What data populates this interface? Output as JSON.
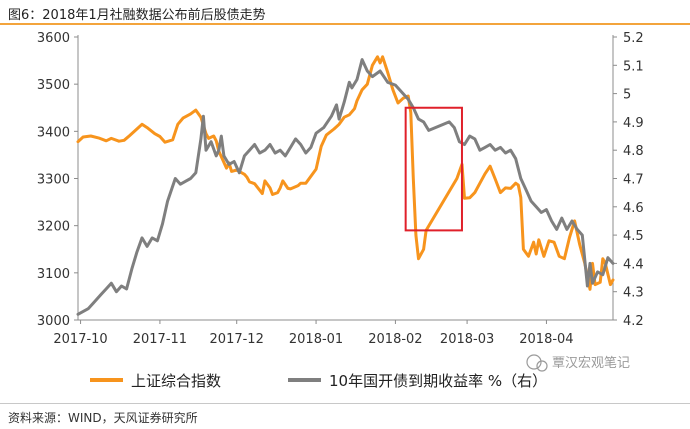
{
  "figure": {
    "title": "图6：2018年1月社融数据公布前后股债走势",
    "source": "资料来源：WIND，天风证券研究所",
    "watermark": "覃汉宏观笔记"
  },
  "chart_data": {
    "type": "line",
    "x_ticks": [
      "2017-10",
      "2017-11",
      "2017-12",
      "2018-01",
      "2018-02",
      "2018-03",
      "2018-04"
    ],
    "x_range": [
      "2017-09-30",
      "2018-04-27"
    ],
    "y_left": {
      "ticks": [
        3000,
        3100,
        3200,
        3300,
        3400,
        3500,
        3600
      ],
      "lim": [
        3000,
        3600
      ]
    },
    "y_right": {
      "ticks": [
        "4.2",
        "4.3",
        "4.4",
        "4.5",
        "4.6",
        "4.7",
        "4.8",
        "4.9",
        "5",
        "5.1",
        "5.2"
      ],
      "lim": [
        4.2,
        5.2
      ]
    },
    "grid": false,
    "legend_position": "bottom",
    "series": [
      {
        "name": "上证综合指数",
        "axis": "left",
        "color": "#f7941d",
        "points": [
          [
            "2017-09-30",
            3378
          ],
          [
            "2017-10-02",
            3388
          ],
          [
            "2017-10-05",
            3390
          ],
          [
            "2017-10-08",
            3386
          ],
          [
            "2017-10-11",
            3380
          ],
          [
            "2017-10-13",
            3385
          ],
          [
            "2017-10-16",
            3379
          ],
          [
            "2017-10-18",
            3381
          ],
          [
            "2017-10-20",
            3390
          ],
          [
            "2017-10-23",
            3405
          ],
          [
            "2017-10-25",
            3415
          ],
          [
            "2017-10-27",
            3408
          ],
          [
            "2017-10-30",
            3395
          ],
          [
            "2017-11-01",
            3389
          ],
          [
            "2017-11-03",
            3377
          ],
          [
            "2017-11-06",
            3382
          ],
          [
            "2017-11-08",
            3415
          ],
          [
            "2017-11-10",
            3428
          ],
          [
            "2017-11-13",
            3437
          ],
          [
            "2017-11-15",
            3445
          ],
          [
            "2017-11-17",
            3430
          ],
          [
            "2017-11-19",
            3395
          ],
          [
            "2017-11-20",
            3385
          ],
          [
            "2017-11-22",
            3390
          ],
          [
            "2017-11-23",
            3380
          ],
          [
            "2017-11-24",
            3358
          ],
          [
            "2017-11-27",
            3322
          ],
          [
            "2017-11-28",
            3333
          ],
          [
            "2017-11-29",
            3315
          ],
          [
            "2017-12-01",
            3318
          ],
          [
            "2017-12-04",
            3309
          ],
          [
            "2017-12-05",
            3303
          ],
          [
            "2017-12-06",
            3293
          ],
          [
            "2017-12-08",
            3289
          ],
          [
            "2017-12-11",
            3268
          ],
          [
            "2017-12-12",
            3295
          ],
          [
            "2017-12-14",
            3280
          ],
          [
            "2017-12-15",
            3266
          ],
          [
            "2017-12-17",
            3270
          ],
          [
            "2017-12-18",
            3280
          ],
          [
            "2017-12-19",
            3295
          ],
          [
            "2017-12-21",
            3279
          ],
          [
            "2017-12-22",
            3278
          ],
          [
            "2017-12-25",
            3285
          ],
          [
            "2017-12-26",
            3290
          ],
          [
            "2017-12-28",
            3290
          ],
          [
            "2018-01-01",
            3320
          ],
          [
            "2018-01-03",
            3368
          ],
          [
            "2018-01-05",
            3392
          ],
          [
            "2018-01-08",
            3405
          ],
          [
            "2018-01-10",
            3415
          ],
          [
            "2018-01-12",
            3430
          ],
          [
            "2018-01-14",
            3435
          ],
          [
            "2018-01-16",
            3448
          ],
          [
            "2018-01-17",
            3465
          ],
          [
            "2018-01-19",
            3488
          ],
          [
            "2018-01-21",
            3500
          ],
          [
            "2018-01-23",
            3540
          ],
          [
            "2018-01-25",
            3558
          ],
          [
            "2018-01-26",
            3545
          ],
          [
            "2018-01-27",
            3558
          ],
          [
            "2018-01-29",
            3525
          ],
          [
            "2018-01-31",
            3488
          ],
          [
            "2018-02-02",
            3460
          ],
          [
            "2018-02-04",
            3470
          ],
          [
            "2018-02-06",
            3475
          ],
          [
            "2018-02-07",
            3440
          ],
          [
            "2018-02-08",
            3300
          ],
          [
            "2018-02-09",
            3180
          ],
          [
            "2018-02-10",
            3130
          ],
          [
            "2018-02-12",
            3150
          ],
          [
            "2018-02-13",
            3190
          ],
          [
            "2018-02-25",
            3300
          ],
          [
            "2018-02-27",
            3330
          ],
          [
            "2018-02-28",
            3258
          ],
          [
            "2018-03-02",
            3259
          ],
          [
            "2018-03-04",
            3270
          ],
          [
            "2018-03-06",
            3290
          ],
          [
            "2018-03-08",
            3310
          ],
          [
            "2018-03-10",
            3326
          ],
          [
            "2018-03-12",
            3299
          ],
          [
            "2018-03-14",
            3270
          ],
          [
            "2018-03-16",
            3280
          ],
          [
            "2018-03-18",
            3279
          ],
          [
            "2018-03-20",
            3290
          ],
          [
            "2018-03-21",
            3286
          ],
          [
            "2018-03-22",
            3260
          ],
          [
            "2018-03-23",
            3150
          ],
          [
            "2018-03-25",
            3135
          ],
          [
            "2018-03-27",
            3165
          ],
          [
            "2018-03-28",
            3140
          ],
          [
            "2018-03-29",
            3170
          ],
          [
            "2018-03-31",
            3135
          ],
          [
            "2018-04-02",
            3168
          ],
          [
            "2018-04-04",
            3165
          ],
          [
            "2018-04-06",
            3135
          ],
          [
            "2018-04-08",
            3130
          ],
          [
            "2018-04-10",
            3175
          ],
          [
            "2018-04-12",
            3210
          ],
          [
            "2018-04-14",
            3160
          ],
          [
            "2018-04-16",
            3120
          ],
          [
            "2018-04-18",
            3065
          ],
          [
            "2018-04-19",
            3120
          ],
          [
            "2018-04-20",
            3075
          ],
          [
            "2018-04-22",
            3080
          ],
          [
            "2018-04-23",
            3130
          ],
          [
            "2018-04-24",
            3120
          ],
          [
            "2018-04-26",
            3075
          ],
          [
            "2018-04-27",
            3085
          ]
        ]
      },
      {
        "name": "10年国开债到期收益率  %（右）",
        "axis": "right",
        "color": "#7f7f7f",
        "points": [
          [
            "2017-09-30",
            4.22
          ],
          [
            "2017-10-04",
            4.24
          ],
          [
            "2017-10-06",
            4.26
          ],
          [
            "2017-10-09",
            4.29
          ],
          [
            "2017-10-11",
            4.31
          ],
          [
            "2017-10-13",
            4.33
          ],
          [
            "2017-10-15",
            4.3
          ],
          [
            "2017-10-17",
            4.32
          ],
          [
            "2017-10-19",
            4.31
          ],
          [
            "2017-10-21",
            4.38
          ],
          [
            "2017-10-23",
            4.44
          ],
          [
            "2017-10-25",
            4.49
          ],
          [
            "2017-10-27",
            4.46
          ],
          [
            "2017-10-29",
            4.49
          ],
          [
            "2017-10-31",
            4.48
          ],
          [
            "2017-11-02",
            4.54
          ],
          [
            "2017-11-04",
            4.62
          ],
          [
            "2017-11-07",
            4.7
          ],
          [
            "2017-11-09",
            4.68
          ],
          [
            "2017-11-11",
            4.69
          ],
          [
            "2017-11-13",
            4.7
          ],
          [
            "2017-11-15",
            4.72
          ],
          [
            "2017-11-17",
            4.84
          ],
          [
            "2017-11-18",
            4.92
          ],
          [
            "2017-11-19",
            4.8
          ],
          [
            "2017-11-21",
            4.83
          ],
          [
            "2017-11-23",
            4.78
          ],
          [
            "2017-11-24",
            4.8
          ],
          [
            "2017-11-25",
            4.85
          ],
          [
            "2017-11-26",
            4.78
          ],
          [
            "2017-11-28",
            4.75
          ],
          [
            "2017-11-30",
            4.76
          ],
          [
            "2017-12-02",
            4.72
          ],
          [
            "2017-12-04",
            4.78
          ],
          [
            "2017-12-06",
            4.8
          ],
          [
            "2017-12-08",
            4.82
          ],
          [
            "2017-12-10",
            4.79
          ],
          [
            "2017-12-12",
            4.8
          ],
          [
            "2017-12-14",
            4.82
          ],
          [
            "2017-12-16",
            4.79
          ],
          [
            "2017-12-18",
            4.8
          ],
          [
            "2017-12-20",
            4.78
          ],
          [
            "2017-12-22",
            4.81
          ],
          [
            "2017-12-24",
            4.84
          ],
          [
            "2017-12-26",
            4.82
          ],
          [
            "2017-12-28",
            4.79
          ],
          [
            "2017-12-30",
            4.81
          ],
          [
            "2018-01-01",
            4.86
          ],
          [
            "2018-01-04",
            4.88
          ],
          [
            "2018-01-07",
            4.92
          ],
          [
            "2018-01-09",
            4.96
          ],
          [
            "2018-01-10",
            4.91
          ],
          [
            "2018-01-12",
            4.97
          ],
          [
            "2018-01-14",
            5.04
          ],
          [
            "2018-01-15",
            5.02
          ],
          [
            "2018-01-17",
            5.05
          ],
          [
            "2018-01-19",
            5.12
          ],
          [
            "2018-01-21",
            5.08
          ],
          [
            "2018-01-23",
            5.06
          ],
          [
            "2018-01-26",
            5.08
          ],
          [
            "2018-01-29",
            5.04
          ],
          [
            "2018-02-01",
            5.03
          ],
          [
            "2018-02-04",
            5.0
          ],
          [
            "2018-02-06",
            4.98
          ],
          [
            "2018-02-08",
            4.95
          ],
          [
            "2018-02-10",
            4.91
          ],
          [
            "2018-02-12",
            4.9
          ],
          [
            "2018-02-14",
            4.87
          ],
          [
            "2018-02-22",
            4.9
          ],
          [
            "2018-02-24",
            4.88
          ],
          [
            "2018-02-26",
            4.83
          ],
          [
            "2018-02-28",
            4.82
          ],
          [
            "2018-03-02",
            4.85
          ],
          [
            "2018-03-04",
            4.84
          ],
          [
            "2018-03-06",
            4.8
          ],
          [
            "2018-03-08",
            4.81
          ],
          [
            "2018-03-10",
            4.82
          ],
          [
            "2018-03-12",
            4.8
          ],
          [
            "2018-03-14",
            4.81
          ],
          [
            "2018-03-16",
            4.79
          ],
          [
            "2018-03-18",
            4.8
          ],
          [
            "2018-03-20",
            4.77
          ],
          [
            "2018-03-22",
            4.7
          ],
          [
            "2018-03-24",
            4.66
          ],
          [
            "2018-03-26",
            4.62
          ],
          [
            "2018-03-28",
            4.6
          ],
          [
            "2018-03-30",
            4.58
          ],
          [
            "2018-04-01",
            4.59
          ],
          [
            "2018-04-03",
            4.55
          ],
          [
            "2018-04-05",
            4.52
          ],
          [
            "2018-04-07",
            4.56
          ],
          [
            "2018-04-09",
            4.52
          ],
          [
            "2018-04-11",
            4.55
          ],
          [
            "2018-04-13",
            4.52
          ],
          [
            "2018-04-15",
            4.5
          ],
          [
            "2018-04-17",
            4.32
          ],
          [
            "2018-04-18",
            4.4
          ],
          [
            "2018-04-19",
            4.33
          ],
          [
            "2018-04-21",
            4.37
          ],
          [
            "2018-04-23",
            4.36
          ],
          [
            "2018-04-25",
            4.42
          ],
          [
            "2018-04-27",
            4.4
          ]
        ]
      }
    ],
    "annotation": {
      "type": "rectangle",
      "color": "#e0202a",
      "x_range": [
        "2018-02-05",
        "2018-02-27"
      ],
      "y_left_range": [
        3190,
        3450
      ]
    }
  }
}
